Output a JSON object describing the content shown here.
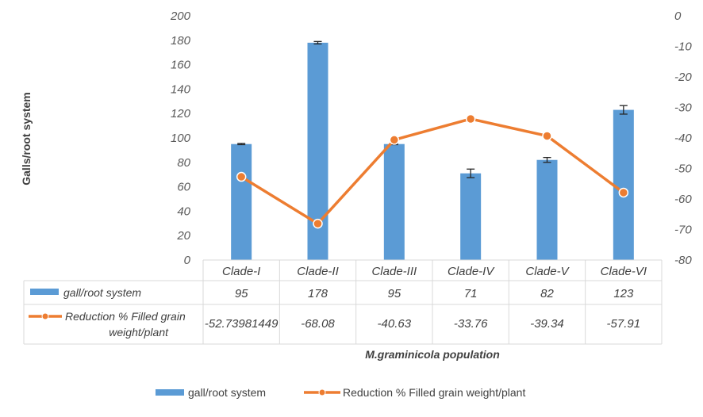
{
  "chart_data": {
    "type": "bar",
    "categories": [
      "Clade-I",
      "Clade-II",
      "Clade-III",
      "Clade-IV",
      "Clade-V",
      "Clade-VI"
    ],
    "series": [
      {
        "name": "gall/root system",
        "type": "bar",
        "axis": "left",
        "values": [
          95,
          178,
          95,
          71,
          82,
          123
        ],
        "errors": [
          0.5,
          1,
          0.5,
          3.5,
          2,
          3.5
        ],
        "table_values": [
          "95",
          "178",
          "95",
          "71",
          "82",
          "123"
        ],
        "color": "#5b9bd5"
      },
      {
        "name": "Reduction % Filled grain weight/plant",
        "name_lines": [
          "Reduction % Filled grain",
          "weight/plant"
        ],
        "type": "line",
        "axis": "right",
        "values": [
          -52.73981449,
          -68.08,
          -40.63,
          -33.76,
          -39.34,
          -57.91
        ],
        "table_values": [
          "-52.73981449",
          "-68.08",
          "-40.63",
          "-33.76",
          "-39.34",
          "-57.91"
        ],
        "color": "#ed7d31"
      }
    ],
    "ylabel": "Galls/root system",
    "xlabel": "M.graminicola population",
    "ylim": [
      0,
      200
    ],
    "yticks": [
      "200",
      "180",
      "160",
      "140",
      "120",
      "100",
      "80",
      "60",
      "40",
      "20",
      "0"
    ],
    "y2lim": [
      -80,
      0
    ],
    "y2ticks": [
      "0",
      "-10",
      "-20",
      "-30",
      "-40",
      "-50",
      "-60",
      "-70",
      "-80"
    ],
    "grid": false,
    "legend_position": "bottom",
    "data_table": true
  }
}
